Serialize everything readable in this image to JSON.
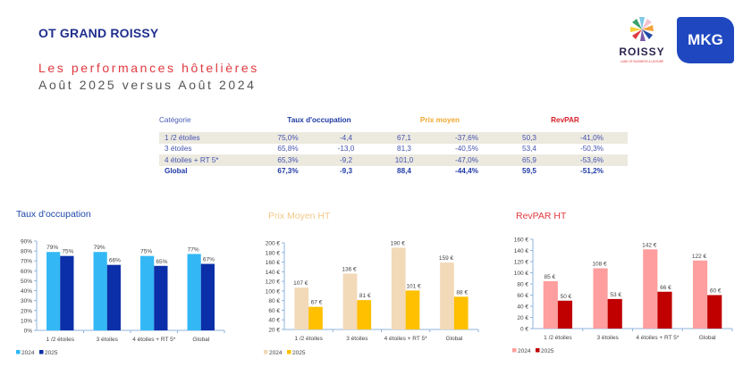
{
  "header": {
    "brand": "OT GRAND ROISSY",
    "title": "Les performances hôtelières",
    "subtitle": "Août 2025 versus Août 2024",
    "logo_roissy": "ROISSY",
    "logo_roissy_tagline": "LAND OF BUSINESS & LEISURE",
    "logo_mkg": "MKG"
  },
  "table": {
    "headers": [
      "Catégorie",
      "Taux d'occupation",
      "Prix moyen",
      "RevPAR"
    ],
    "header_colors": [
      "#4a5bb5",
      "#1f3aa6",
      "#f0a830",
      "#d9232e"
    ],
    "rows": [
      {
        "cells": [
          "1 /2 étoiles",
          "75,0%",
          "-4,4",
          "67,1",
          "-37,6%",
          "50,3",
          "-41,0%"
        ]
      },
      {
        "cells": [
          "3 étoiles",
          "65,8%",
          "-13,0",
          "81,3",
          "-40,5%",
          "53,4",
          "-50,3%"
        ]
      },
      {
        "cells": [
          "4 étoiles + RT 5*",
          "65,3%",
          "-9,2",
          "101,0",
          "-47,0%",
          "65,9",
          "-53,6%"
        ]
      },
      {
        "cells": [
          "Global",
          "67,3%",
          "-9,3",
          "88,4",
          "-44,4%",
          "59,5",
          "-51,2%"
        ]
      }
    ]
  },
  "chart_data": [
    {
      "type": "bar",
      "title": "Taux d'occupation",
      "title_color": "#1f48a8",
      "categories": [
        "1 /2 étoiles",
        "3 étoiles",
        "4 étoiles + RT 5*",
        "Global"
      ],
      "series": [
        {
          "name": "2024",
          "values": [
            79,
            79,
            75,
            77
          ],
          "labels": [
            "79%",
            "79%",
            "75%",
            "77%"
          ],
          "color": "#33b8f5"
        },
        {
          "name": "2025",
          "values": [
            75,
            66,
            65,
            67
          ],
          "labels": [
            "75%",
            "66%",
            "65%",
            "67%"
          ],
          "color": "#0a2fa8"
        }
      ],
      "ylim": [
        0,
        90
      ],
      "yticks": [
        0,
        10,
        20,
        30,
        40,
        50,
        60,
        70,
        80,
        90
      ],
      "ytick_labels": [
        "0%",
        "10%",
        "20%",
        "30%",
        "40%",
        "50%",
        "60%",
        "70%",
        "80%",
        "90%"
      ],
      "xlabel": "",
      "ylabel": "",
      "legend": "bottom-left",
      "grid": false
    },
    {
      "type": "bar",
      "title": "Prix Moyen HT",
      "title_color": "#f2c98a",
      "categories": [
        "1 /2 étoiles",
        "3 étoiles",
        "4 étoiles + RT 5*",
        "Global"
      ],
      "series": [
        {
          "name": "2024",
          "values": [
            107,
            136,
            190,
            159
          ],
          "labels": [
            "107 €",
            "136 €",
            "190 €",
            "159 €"
          ],
          "color": "#f2d9b8"
        },
        {
          "name": "2025",
          "values": [
            67,
            81,
            101,
            88
          ],
          "labels": [
            "67 €",
            "81 €",
            "101 €",
            "88 €"
          ],
          "color": "#ffc000"
        }
      ],
      "ylim": [
        20,
        200
      ],
      "yticks": [
        20,
        40,
        60,
        80,
        100,
        120,
        140,
        160,
        180,
        200
      ],
      "ytick_labels": [
        "20 €",
        "40 €",
        "60 €",
        "80 €",
        "100 €",
        "120 €",
        "140 €",
        "160 €",
        "180 €",
        "200 €"
      ],
      "xlabel": "",
      "ylabel": "",
      "legend": "bottom-left",
      "grid": false
    },
    {
      "type": "bar",
      "title": "RevPAR HT",
      "title_color": "#e0393e",
      "categories": [
        "1 /2 étoiles",
        "3 étoiles",
        "4 étoiles + RT 5*",
        "Global"
      ],
      "series": [
        {
          "name": "2024",
          "values": [
            85,
            108,
            142,
            122
          ],
          "labels": [
            "85 €",
            "108 €",
            "142 €",
            "122 €"
          ],
          "color": "#ff9e9e"
        },
        {
          "name": "2025",
          "values": [
            50,
            53,
            66,
            60
          ],
          "labels": [
            "50 €",
            "53 €",
            "66 €",
            "60 €"
          ],
          "color": "#c00000"
        }
      ],
      "ylim": [
        0,
        160
      ],
      "yticks": [
        0,
        20,
        40,
        60,
        80,
        100,
        120,
        140,
        160
      ],
      "ytick_labels": [
        "0 €",
        "20 €",
        "40 €",
        "60 €",
        "80 €",
        "100 €",
        "120 €",
        "140 €",
        "160 €"
      ],
      "xlabel": "",
      "ylabel": "",
      "legend": "bottom-left",
      "grid": false
    }
  ]
}
